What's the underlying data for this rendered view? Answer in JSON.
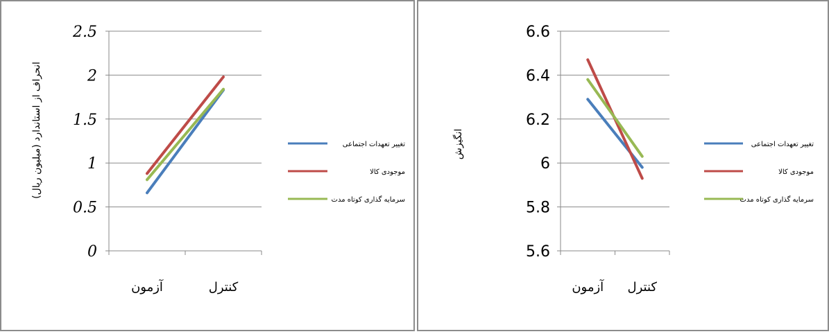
{
  "chart_data": [
    {
      "type": "line",
      "title": "",
      "xlabel": "",
      "ylabel": "انحراف از استاندارد (میلیون ریال)",
      "categories": [
        "آزمون",
        "کنترل"
      ],
      "ylim": [
        0,
        2.5
      ],
      "yticks": [
        "0",
        "0.5",
        "1",
        "1.5",
        "2",
        "2.5"
      ],
      "grid": true,
      "legend_position": "right",
      "series": [
        {
          "name": "تغییر تعهدات اجتماعی",
          "values": [
            0.66,
            1.83
          ],
          "color": "#4a7ebb"
        },
        {
          "name": "موجودی کالا",
          "values": [
            0.88,
            1.98
          ],
          "color": "#be4b48"
        },
        {
          "name": "سرمایه گذاری کوتاه مدت",
          "values": [
            0.81,
            1.84
          ],
          "color": "#98b954"
        }
      ]
    },
    {
      "type": "line",
      "title": "",
      "xlabel": "",
      "ylabel": "انگیزش",
      "categories": [
        "آزمون",
        "کنترل"
      ],
      "ylim": [
        5.6,
        6.6
      ],
      "yticks": [
        "5.6",
        "5.8",
        "6",
        "6.2",
        "6.4",
        "6.6"
      ],
      "grid": true,
      "legend_position": "right",
      "series": [
        {
          "name": "تغییر تعهدات اجتماعی",
          "values": [
            6.29,
            5.98
          ],
          "color": "#4a7ebb"
        },
        {
          "name": "موجودی کالا",
          "values": [
            6.47,
            5.93
          ],
          "color": "#be4b48"
        },
        {
          "name": "سرمایه گذاری کوتاه مدت",
          "values": [
            6.38,
            6.03
          ],
          "color": "#98b954"
        }
      ]
    }
  ]
}
